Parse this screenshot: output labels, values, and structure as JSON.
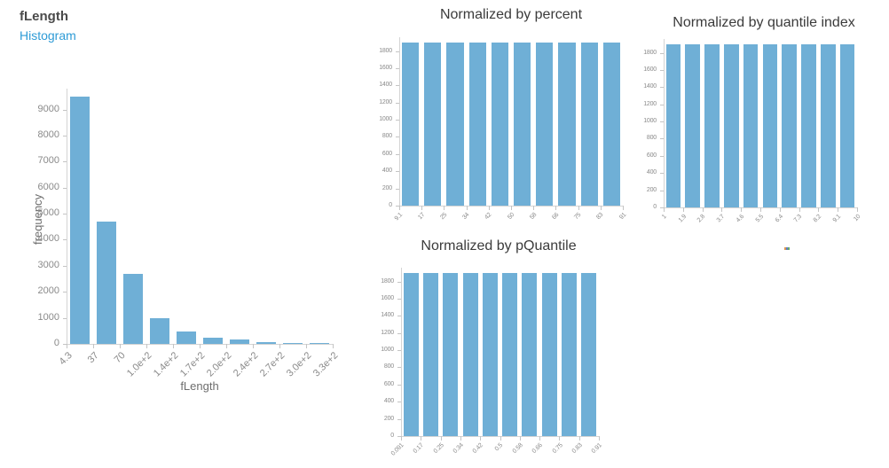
{
  "header": {
    "note": ""
  },
  "colors": {
    "bar": "#6fafd6",
    "subtitle_link": "#2e9bd6",
    "title_text": "#3b3b3b",
    "axis_text": "#8a8a8a"
  },
  "chart_data": [
    {
      "id": "flength",
      "type": "bar",
      "title": "fLength",
      "subtitle": "Histogram",
      "xlabel": "fLength",
      "ylabel": "frequency",
      "ylim": [
        0,
        9800
      ],
      "yticks": [
        0,
        1000,
        2000,
        3000,
        4000,
        5000,
        6000,
        7000,
        8000,
        9000
      ],
      "bin_edges": [
        "4.3",
        "37",
        "70",
        "1.0e+2",
        "1.4e+2",
        "1.7e+2",
        "2.0e+2",
        "2.4e+2",
        "2.7e+2",
        "3.0e+2",
        "3.3e+2"
      ],
      "values": [
        9480,
        4700,
        2700,
        970,
        470,
        255,
        160,
        65,
        30,
        25
      ],
      "bar_color": "#6fafd6",
      "grid": false,
      "legend": "none"
    },
    {
      "id": "percent",
      "type": "bar",
      "title": "Normalized by percent",
      "xlabel": "",
      "ylabel": "",
      "ylim": [
        0,
        1960
      ],
      "yticks": [
        0,
        200,
        400,
        600,
        800,
        1000,
        1200,
        1400,
        1600,
        1800
      ],
      "bin_edges": [
        "9.1",
        "17",
        "25",
        "34",
        "42",
        "50",
        "58",
        "66",
        "75",
        "83",
        "91"
      ],
      "values": [
        1902,
        1902,
        1902,
        1902,
        1902,
        1902,
        1902,
        1902,
        1902,
        1902
      ],
      "bar_color": "#6fafd6",
      "grid": false,
      "legend": "none"
    },
    {
      "id": "qindex",
      "type": "bar",
      "title": "Normalized by quantile index",
      "xlabel": "",
      "ylabel": "",
      "ylim": [
        0,
        1960
      ],
      "yticks": [
        0,
        200,
        400,
        600,
        800,
        1000,
        1200,
        1400,
        1600,
        1800
      ],
      "bin_edges": [
        "1",
        "1.9",
        "2.8",
        "3.7",
        "4.6",
        "5.5",
        "6.4",
        "7.3",
        "8.2",
        "9.1",
        "10"
      ],
      "values": [
        1902,
        1902,
        1902,
        1902,
        1902,
        1902,
        1902,
        1902,
        1902,
        1902
      ],
      "bar_color": "#6fafd6",
      "grid": false,
      "legend": "none"
    },
    {
      "id": "pquantile",
      "type": "bar",
      "title": "Normalized by pQuantile",
      "xlabel": "",
      "ylabel": "",
      "ylim": [
        0,
        1960
      ],
      "yticks": [
        0,
        200,
        400,
        600,
        800,
        1000,
        1200,
        1400,
        1600,
        1800
      ],
      "bin_edges": [
        "0.091",
        "0.17",
        "0.25",
        "0.34",
        "0.42",
        "0.5",
        "0.58",
        "0.66",
        "0.75",
        "0.83",
        "0.91"
      ],
      "values": [
        1902,
        1902,
        1902,
        1902,
        1902,
        1902,
        1902,
        1902,
        1902,
        1902
      ],
      "bar_color": "#6fafd6",
      "grid": false,
      "legend": "none"
    }
  ]
}
